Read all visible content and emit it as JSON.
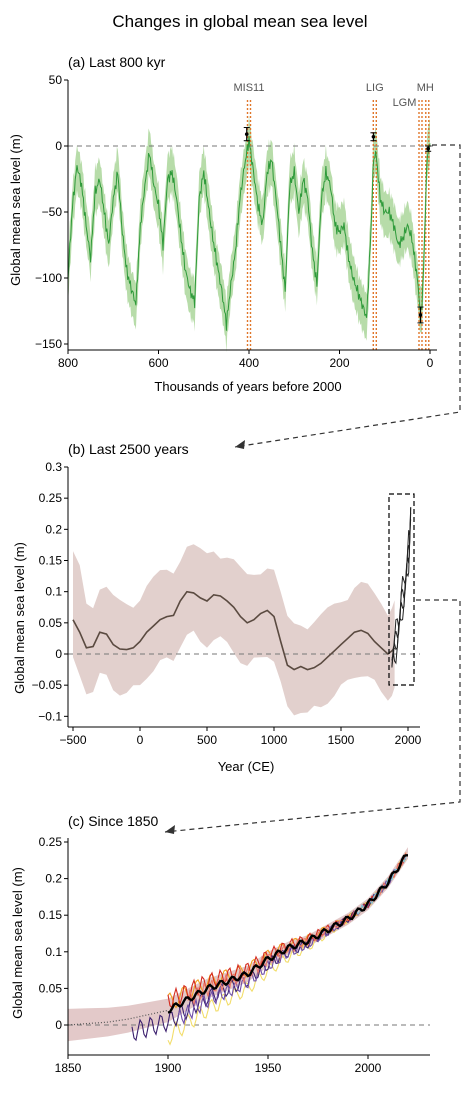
{
  "figure": {
    "title": "Changes in global mean sea level"
  },
  "colors": {
    "panel_a_line": "#2e9a3a",
    "panel_a_band": "#b7dca9",
    "panel_b_line": "#5a4a40",
    "panel_b_band": "#e2d0cd",
    "event_line": "#e0762a",
    "zero_line": "#777777",
    "panel_c_mean": "#000000",
    "panel_c_band": "#e3c9c9"
  },
  "chart_data": [
    {
      "type": "line",
      "title": "(a) Last 800 kyr",
      "xlabel": "Thousands of years before 2000",
      "ylabel": "Global mean sea level (m)",
      "xlim": [
        800,
        0
      ],
      "ylim": [
        -155,
        50
      ],
      "x_reversed": true,
      "xticks": [
        "800",
        "600",
        "400",
        "200",
        "0"
      ],
      "yticks": [
        "50",
        "0",
        "-50",
        "-100",
        "-150"
      ],
      "events": [
        {
          "label": "MIS11",
          "x": 400
        },
        {
          "label": "LIG",
          "x": 122
        },
        {
          "label": "LGM",
          "x": 21
        },
        {
          "label": "MH",
          "x": 6
        }
      ],
      "markers": [
        {
          "x": 405,
          "y": 9,
          "err": 5
        },
        {
          "x": 125,
          "y": 7,
          "err": 3
        },
        {
          "x": 21,
          "y": -128,
          "err": 6
        },
        {
          "x": 4,
          "y": -2,
          "err": 2
        }
      ],
      "series": [
        {
          "x": [
            800,
            790,
            780,
            770,
            760,
            750,
            740,
            730,
            720,
            710,
            700,
            690,
            680,
            670,
            660,
            650,
            640,
            630,
            620,
            610,
            600,
            590,
            580,
            570,
            560,
            550,
            540,
            530,
            520,
            510,
            500,
            490,
            480,
            470,
            460,
            450,
            440,
            430,
            420,
            410,
            400,
            390,
            380,
            370,
            360,
            350,
            340,
            330,
            320,
            310,
            300,
            290,
            280,
            270,
            260,
            250,
            240,
            230,
            220,
            210,
            200,
            190,
            180,
            170,
            160,
            150,
            140,
            130,
            125,
            120,
            115,
            110,
            100,
            90,
            80,
            70,
            60,
            50,
            40,
            30,
            25,
            21,
            18,
            15,
            12,
            10,
            8,
            6,
            4,
            2,
            0
          ],
          "y": [
            -100,
            -45,
            -15,
            -30,
            -60,
            -85,
            -35,
            -25,
            -50,
            -75,
            -40,
            -20,
            -65,
            -95,
            -108,
            -120,
            -60,
            -30,
            -5,
            -30,
            -45,
            -75,
            -25,
            -20,
            -40,
            -70,
            -95,
            -110,
            -118,
            -40,
            -20,
            -45,
            -70,
            -90,
            -110,
            -135,
            -105,
            -80,
            -40,
            -15,
            5,
            -20,
            -45,
            -60,
            -20,
            -10,
            -40,
            -75,
            -110,
            -30,
            -20,
            -50,
            -25,
            -40,
            -80,
            -105,
            -40,
            -20,
            -30,
            -60,
            -65,
            -60,
            -85,
            -100,
            -110,
            -120,
            -130,
            -60,
            -10,
            -5,
            -20,
            -40,
            -50,
            -50,
            -60,
            -75,
            -70,
            -60,
            -70,
            -95,
            -110,
            -128,
            -120,
            -100,
            -70,
            -45,
            -25,
            -8,
            -4,
            -1,
            0
          ]
        }
      ]
    },
    {
      "type": "line",
      "title": "(b) Last 2500 years",
      "xlabel": "Year (CE)",
      "ylabel": "Global mean sea level (m)",
      "xlim": [
        -500,
        2100
      ],
      "ylim": [
        -0.11,
        0.3
      ],
      "xticks": [
        "-500",
        "0",
        "500",
        "1000",
        "1500",
        "2000"
      ],
      "yticks": [
        "0.3",
        "0.25",
        "0.2",
        "0.15",
        "0.1",
        "0.05",
        "0",
        "-0.05",
        "-0.1"
      ],
      "series": [
        {
          "x": [
            -500,
            -450,
            -400,
            -350,
            -300,
            -250,
            -200,
            -150,
            -100,
            -50,
            0,
            50,
            100,
            150,
            200,
            250,
            300,
            350,
            400,
            450,
            500,
            550,
            600,
            650,
            700,
            750,
            800,
            850,
            900,
            950,
            1000,
            1050,
            1100,
            1150,
            1200,
            1250,
            1300,
            1350,
            1400,
            1450,
            1500,
            1550,
            1600,
            1650,
            1700,
            1750,
            1800,
            1850,
            1880,
            1900
          ],
          "y": [
            0.055,
            0.035,
            0.01,
            0.012,
            0.035,
            0.032,
            0.015,
            0.008,
            0.007,
            0.01,
            0.02,
            0.035,
            0.045,
            0.055,
            0.06,
            0.062,
            0.085,
            0.1,
            0.098,
            0.09,
            0.085,
            0.095,
            0.093,
            0.085,
            0.075,
            0.06,
            0.05,
            0.055,
            0.065,
            0.07,
            0.06,
            0.02,
            -0.018,
            -0.025,
            -0.02,
            -0.025,
            -0.022,
            -0.015,
            -0.005,
            0.005,
            0.015,
            0.025,
            0.035,
            0.038,
            0.033,
            0.02,
            0.01,
            0.0,
            0.005,
            0.01
          ]
        }
      ]
    },
    {
      "type": "line",
      "title": "(c) Since 1850",
      "xlabel": "",
      "ylabel": "Global mean sea level (m)",
      "xlim": [
        1850,
        2027
      ],
      "ylim": [
        -0.05,
        0.25
      ],
      "xticks": [
        "1850",
        "1900",
        "1950",
        "2000"
      ],
      "yticks": [
        "0.25",
        "0.2",
        "0.15",
        "0.1",
        "0.05",
        "0"
      ],
      "series": [
        {
          "x": [
            1850,
            1860,
            1870,
            1880,
            1890,
            1900,
            1910,
            1920,
            1930,
            1940,
            1950,
            1960,
            1970,
            1980,
            1990,
            2000,
            2005,
            2010,
            2015,
            2020
          ],
          "y": [
            0.0,
            0.002,
            0.004,
            0.008,
            0.014,
            0.02,
            0.035,
            0.05,
            0.06,
            0.07,
            0.09,
            0.105,
            0.115,
            0.13,
            0.145,
            0.165,
            0.18,
            0.195,
            0.215,
            0.235
          ]
        }
      ]
    }
  ]
}
